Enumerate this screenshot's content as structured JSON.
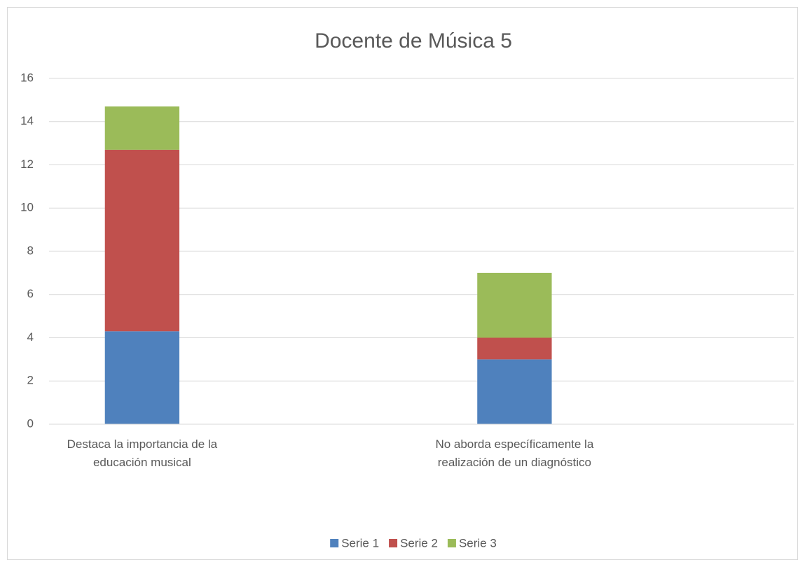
{
  "chart_data": {
    "type": "stacked_bar",
    "title": "Docente de Música 5",
    "categories": [
      "Destaca la importancia de la educación musical",
      null,
      "No aborda específicamente la realización de un diagnóstico",
      null
    ],
    "series": [
      {
        "name": "Serie 1",
        "color": "#4f81bd",
        "values": [
          4.3,
          null,
          3,
          null
        ]
      },
      {
        "name": "Serie 2",
        "color": "#c0504d",
        "values": [
          8.4,
          null,
          1,
          null
        ]
      },
      {
        "name": "Serie 3",
        "color": "#9bbb59",
        "values": [
          2.0,
          null,
          3,
          null
        ]
      }
    ],
    "ylim": [
      0,
      16
    ],
    "yticks": [
      0,
      2,
      4,
      6,
      8,
      10,
      12,
      14,
      16
    ],
    "grid": true,
    "legend": "bottom"
  }
}
